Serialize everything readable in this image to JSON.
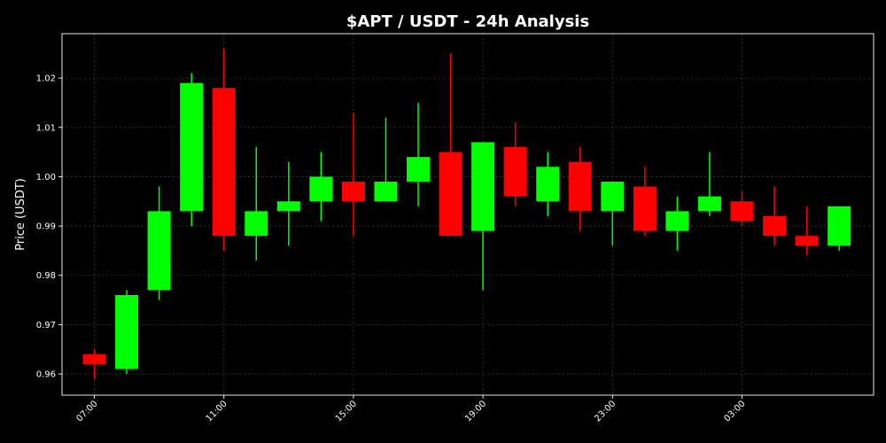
{
  "chart_data": {
    "type": "candlestick",
    "title": "$APT / USDT - 24h Analysis",
    "ylabel": "Price (USDT)",
    "xlabel": "",
    "grid": true,
    "ylim": [
      0.9557,
      1.029
    ],
    "y_ticks": [
      0.96,
      0.97,
      0.98,
      0.99,
      1.0,
      1.01,
      1.02
    ],
    "y_tick_labels": [
      "0.96",
      "0.97",
      "0.98",
      "0.99",
      "1.00",
      "1.01",
      "1.02"
    ],
    "x_ticks": [
      {
        "index": 0,
        "label": "07:00"
      },
      {
        "index": 4,
        "label": "11:00"
      },
      {
        "index": 8,
        "label": "15:00"
      },
      {
        "index": 12,
        "label": "19:00"
      },
      {
        "index": 16,
        "label": "23:00"
      },
      {
        "index": 20,
        "label": "03:00"
      }
    ],
    "colors": {
      "up": "#00ff00",
      "down": "#ff0000",
      "background": "#000000"
    },
    "candles": [
      {
        "open": 0.964,
        "high": 0.965,
        "low": 0.959,
        "close": 0.962
      },
      {
        "open": 0.961,
        "high": 0.977,
        "low": 0.96,
        "close": 0.976
      },
      {
        "open": 0.977,
        "high": 0.998,
        "low": 0.975,
        "close": 0.993
      },
      {
        "open": 0.993,
        "high": 1.021,
        "low": 0.99,
        "close": 1.019
      },
      {
        "open": 1.018,
        "high": 1.026,
        "low": 0.985,
        "close": 0.988
      },
      {
        "open": 0.988,
        "high": 1.006,
        "low": 0.983,
        "close": 0.993
      },
      {
        "open": 0.993,
        "high": 1.003,
        "low": 0.986,
        "close": 0.995
      },
      {
        "open": 0.995,
        "high": 1.005,
        "low": 0.991,
        "close": 1.0
      },
      {
        "open": 0.999,
        "high": 1.013,
        "low": 0.988,
        "close": 0.995
      },
      {
        "open": 0.995,
        "high": 1.012,
        "low": 0.995,
        "close": 0.999
      },
      {
        "open": 0.999,
        "high": 1.015,
        "low": 0.994,
        "close": 1.004
      },
      {
        "open": 1.005,
        "high": 1.025,
        "low": 0.988,
        "close": 0.988
      },
      {
        "open": 0.989,
        "high": 1.007,
        "low": 0.977,
        "close": 1.007
      },
      {
        "open": 1.006,
        "high": 1.011,
        "low": 0.994,
        "close": 0.996
      },
      {
        "open": 0.995,
        "high": 1.005,
        "low": 0.992,
        "close": 1.002
      },
      {
        "open": 1.003,
        "high": 1.006,
        "low": 0.989,
        "close": 0.993
      },
      {
        "open": 0.993,
        "high": 0.999,
        "low": 0.986,
        "close": 0.999
      },
      {
        "open": 0.998,
        "high": 1.002,
        "low": 0.988,
        "close": 0.989
      },
      {
        "open": 0.989,
        "high": 0.996,
        "low": 0.985,
        "close": 0.993
      },
      {
        "open": 0.993,
        "high": 1.005,
        "low": 0.992,
        "close": 0.996
      },
      {
        "open": 0.995,
        "high": 0.997,
        "low": 0.99,
        "close": 0.991
      },
      {
        "open": 0.992,
        "high": 0.998,
        "low": 0.986,
        "close": 0.988
      },
      {
        "open": 0.988,
        "high": 0.994,
        "low": 0.984,
        "close": 0.986
      },
      {
        "open": 0.986,
        "high": 0.994,
        "low": 0.985,
        "close": 0.994
      }
    ]
  }
}
